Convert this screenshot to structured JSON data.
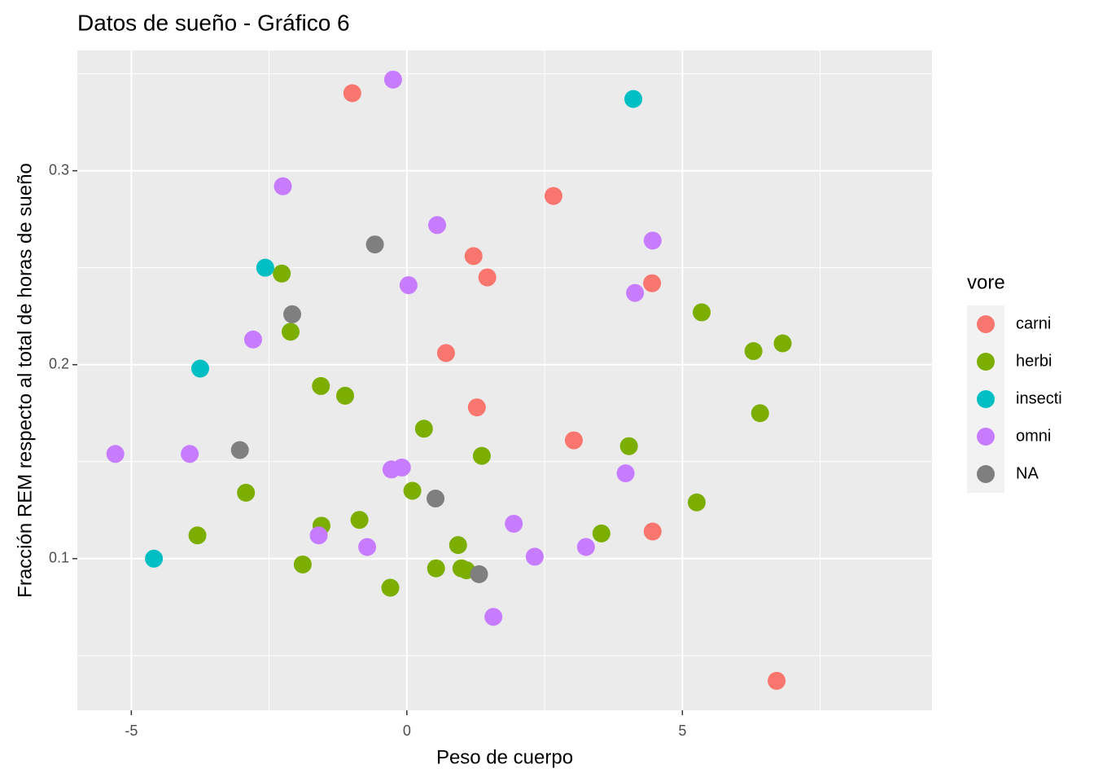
{
  "chart_data": {
    "type": "scatter",
    "title": "Datos de sueño - Gráfico 6",
    "xlabel": "Peso de cuerpo",
    "ylabel": "Fracción REM respecto al total de horas de sueño",
    "legend_title": "vore",
    "legend": "right",
    "xlim": [
      -5.98,
      9.53
    ],
    "ylim": [
      0.0218,
      0.362
    ],
    "xticks": [
      -5,
      0,
      5
    ],
    "yticks": [
      0.1,
      0.2,
      0.3
    ],
    "x_minor_grid": [
      -2.5,
      2.5,
      7.5
    ],
    "y_minor_grid": [
      0.05,
      0.15,
      0.25,
      0.35
    ],
    "grid": true,
    "series": [
      {
        "name": "carni",
        "color": "#f8766d",
        "x": [
          -0.99,
          2.66,
          1.21,
          1.46,
          4.45,
          0.71,
          1.27,
          3.03,
          4.46,
          6.71
        ],
        "values": [
          0.34,
          0.287,
          0.256,
          0.245,
          0.242,
          0.206,
          0.178,
          0.161,
          0.114,
          0.037
        ]
      },
      {
        "name": "herbi",
        "color": "#7cae00",
        "x": [
          -2.27,
          -2.11,
          5.35,
          6.29,
          6.82,
          -1.56,
          -1.12,
          6.41,
          0.31,
          4.03,
          1.36,
          -2.92,
          0.1,
          5.26,
          -0.86,
          -1.55,
          -3.8,
          3.53,
          0.93,
          -1.89,
          0.53,
          0.99,
          1.08,
          -0.3
        ],
        "values": [
          0.247,
          0.217,
          0.227,
          0.207,
          0.211,
          0.189,
          0.184,
          0.175,
          0.167,
          0.158,
          0.153,
          0.134,
          0.135,
          0.129,
          0.12,
          0.117,
          0.112,
          0.113,
          0.107,
          0.097,
          0.095,
          0.095,
          0.094,
          0.085
        ]
      },
      {
        "name": "insecti",
        "color": "#00bfc4",
        "x": [
          4.11,
          -2.57,
          -3.75,
          -4.59
        ],
        "values": [
          0.337,
          0.25,
          0.198,
          0.1
        ]
      },
      {
        "name": "omni",
        "color": "#c77cff",
        "x": [
          -0.25,
          -2.25,
          0.55,
          4.46,
          0.03,
          4.14,
          -2.79,
          -5.29,
          -3.94,
          -0.09,
          -0.28,
          3.97,
          1.94,
          -1.6,
          -0.72,
          3.25,
          2.32,
          1.57
        ],
        "values": [
          0.347,
          0.292,
          0.272,
          0.264,
          0.241,
          0.237,
          0.213,
          0.154,
          0.154,
          0.147,
          0.146,
          0.144,
          0.118,
          0.112,
          0.106,
          0.106,
          0.101,
          0.07
        ]
      },
      {
        "name": "NA",
        "color": "#7f7f7f",
        "x": [
          -0.58,
          -2.08,
          -3.03,
          0.52,
          1.31
        ],
        "values": [
          0.262,
          0.226,
          0.156,
          0.131,
          0.092
        ]
      }
    ]
  }
}
